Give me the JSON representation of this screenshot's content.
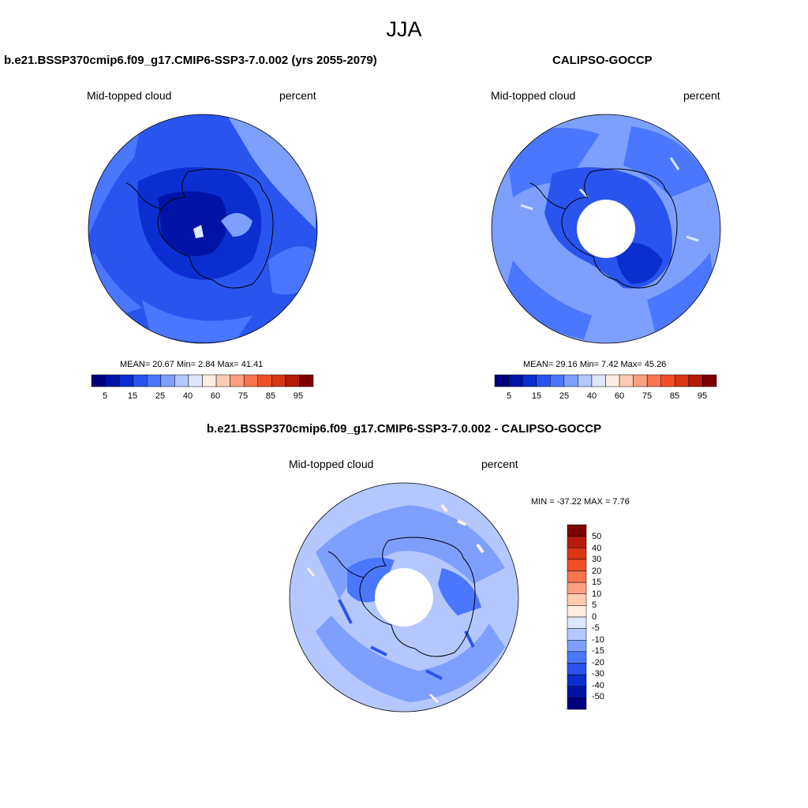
{
  "season": "JJA",
  "colors": {
    "abs_scale": [
      "#00007f",
      "#0013a5",
      "#0a2ed0",
      "#2a54ee",
      "#4b77ff",
      "#7da0ff",
      "#b4c8ff",
      "#dde8ff",
      "#ffeee0",
      "#fdcbb0",
      "#fca081",
      "#fb7452",
      "#f14f28",
      "#d93614",
      "#b41b08",
      "#7c0000"
    ],
    "diff_scale": [
      "#00007f",
      "#0013a5",
      "#0a2ed0",
      "#2a54ee",
      "#4b77ff",
      "#7da0ff",
      "#b4c8ff",
      "#dde8ff",
      "#ffeee0",
      "#fdcbb0",
      "#fca081",
      "#fb7452",
      "#f14f28",
      "#d93614",
      "#b41b08",
      "#7c0000"
    ]
  },
  "panels": {
    "model": {
      "title": "b.e21.BSSP370cmip6.f09_g17.CMIP6-SSP3-7.0.002 (yrs 2055-2079)",
      "variable": "Mid-topped cloud",
      "units": "percent",
      "stats": "MEAN=  20.67  Min=   2.84  Max=  41.41",
      "colorbar_ticks": [
        "5",
        "15",
        "25",
        "40",
        "60",
        "75",
        "85",
        "95"
      ]
    },
    "obs": {
      "title": "CALIPSO-GOCCP",
      "variable": "Mid-topped cloud",
      "units": "percent",
      "stats": "MEAN=  29.16  Min=   7.42  Max=  45.26",
      "colorbar_ticks": [
        "5",
        "15",
        "25",
        "40",
        "60",
        "75",
        "85",
        "95"
      ]
    },
    "diff": {
      "title": "b.e21.BSSP370cmip6.f09_g17.CMIP6-SSP3-7.0.002 - CALIPSO-GOCCP",
      "variable": "Mid-topped cloud",
      "units": "percent",
      "stats": "MIN = -37.22 MAX =   7.76",
      "colorbar_ticks": [
        "50",
        "40",
        "30",
        "20",
        "15",
        "10",
        "5",
        "0",
        "-5",
        "-10",
        "-15",
        "-20",
        "-30",
        "-40",
        "-50"
      ]
    }
  }
}
